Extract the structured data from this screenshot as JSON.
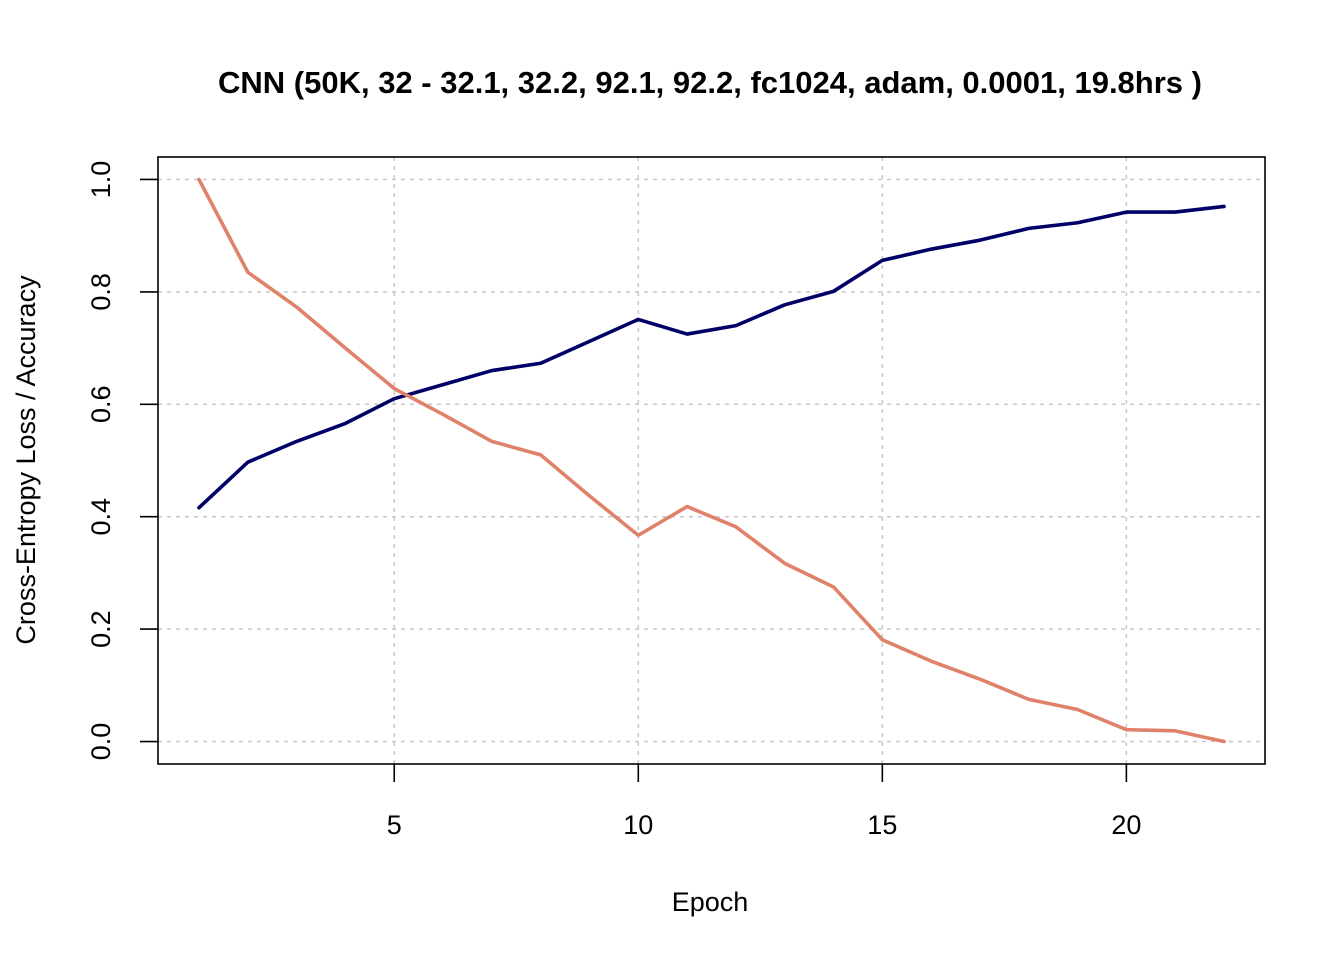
{
  "chart_data": {
    "type": "line",
    "title": "CNN (50K, 32 - 32.1, 32.2, 92.1, 92.2, fc1024, adam, 0.0001, 19.8hrs )",
    "xlabel": "Epoch",
    "ylabel": "Cross-Entropy Loss / Accuracy",
    "x": [
      1,
      2,
      3,
      4,
      5,
      6,
      7,
      8,
      9,
      10,
      11,
      12,
      13,
      14,
      15,
      16,
      17,
      18,
      19,
      20,
      21,
      22
    ],
    "xlim": [
      0.16,
      22.84
    ],
    "ylim": [
      -0.04,
      1.04
    ],
    "xticks": [
      5,
      10,
      15,
      20
    ],
    "yticks": [
      0.0,
      0.2,
      0.4,
      0.6,
      0.8,
      1.0
    ],
    "xtick_labels": [
      "5",
      "10",
      "15",
      "20"
    ],
    "ytick_labels": [
      "0.0",
      "0.2",
      "0.4",
      "0.6",
      "0.8",
      "1.0"
    ],
    "grid": true,
    "series": [
      {
        "color": "#000066",
        "values": [
          0.416,
          0.497,
          0.534,
          0.566,
          0.61,
          0.635,
          0.66,
          0.673,
          0.712,
          0.751,
          0.725,
          0.74,
          0.777,
          0.801,
          0.856,
          0.876,
          0.892,
          0.913,
          0.923,
          0.942,
          0.942,
          0.952
        ]
      },
      {
        "color": "#e0826a",
        "values": [
          1.0,
          0.835,
          0.773,
          0.7,
          0.628,
          0.582,
          0.534,
          0.51,
          0.437,
          0.367,
          0.418,
          0.382,
          0.317,
          0.275,
          0.181,
          0.143,
          0.111,
          0.075,
          0.057,
          0.021,
          0.019,
          0.0
        ]
      }
    ]
  }
}
